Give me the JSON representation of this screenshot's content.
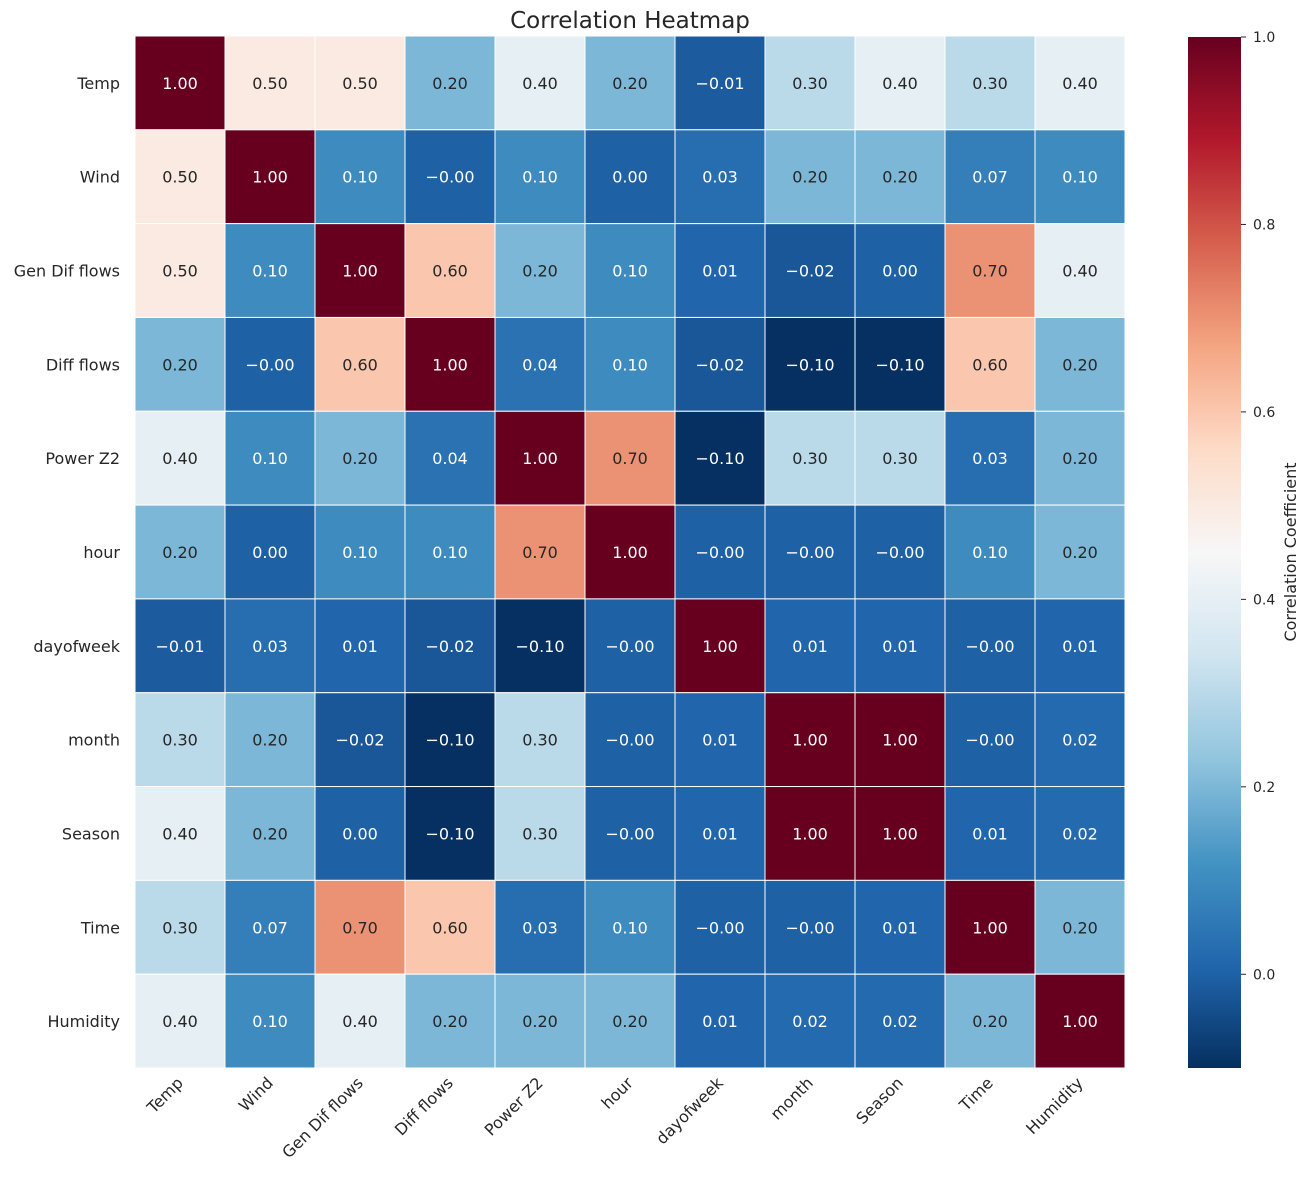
{
  "chart_data": {
    "type": "heatmap",
    "title": "Correlation Heatmap",
    "xlabel": "",
    "ylabel": "",
    "row_labels": [
      "Temp",
      "Wind",
      "Gen Dif flows",
      "Diff flows",
      "Power Z2",
      "hour",
      "dayofweek",
      "month",
      "Season",
      "Time",
      "Humidity"
    ],
    "col_labels": [
      "Temp",
      "Wind",
      "Gen Dif flows",
      "Diff flows",
      "Power Z2",
      "hour",
      "dayofweek",
      "month",
      "Season",
      "Time",
      "Humidity"
    ],
    "values": [
      [
        1.0,
        0.5,
        0.5,
        0.2,
        0.4,
        0.2,
        -0.01,
        0.3,
        0.4,
        0.3,
        0.4
      ],
      [
        0.5,
        1.0,
        0.1,
        -0.0,
        0.1,
        0.0,
        0.03,
        0.2,
        0.2,
        0.07,
        0.1
      ],
      [
        0.5,
        0.1,
        1.0,
        0.6,
        0.2,
        0.1,
        0.01,
        -0.02,
        0.0,
        0.7,
        0.4
      ],
      [
        0.2,
        -0.0,
        0.6,
        1.0,
        0.04,
        0.1,
        -0.02,
        -0.1,
        -0.1,
        0.6,
        0.2
      ],
      [
        0.4,
        0.1,
        0.2,
        0.04,
        1.0,
        0.7,
        -0.1,
        0.3,
        0.3,
        0.03,
        0.2
      ],
      [
        0.2,
        0.0,
        0.1,
        0.1,
        0.7,
        1.0,
        -0.0,
        -0.0,
        -0.0,
        0.1,
        0.2
      ],
      [
        -0.01,
        0.03,
        0.01,
        -0.02,
        -0.1,
        -0.0,
        1.0,
        0.01,
        0.01,
        -0.0,
        0.01
      ],
      [
        0.3,
        0.2,
        -0.02,
        -0.1,
        0.3,
        -0.0,
        0.01,
        1.0,
        1.0,
        -0.0,
        0.02
      ],
      [
        0.4,
        0.2,
        0.0,
        -0.1,
        0.3,
        -0.0,
        0.01,
        1.0,
        1.0,
        0.01,
        0.02
      ],
      [
        0.3,
        0.07,
        0.7,
        0.6,
        0.03,
        0.1,
        -0.0,
        -0.0,
        0.01,
        1.0,
        0.2
      ],
      [
        0.4,
        0.1,
        0.4,
        0.2,
        0.2,
        0.2,
        0.01,
        0.02,
        0.02,
        0.2,
        1.0
      ]
    ],
    "annotations": [
      [
        "1.00",
        "0.50",
        "0.50",
        "0.20",
        "0.40",
        "0.20",
        "−0.01",
        "0.30",
        "0.40",
        "0.30",
        "0.40"
      ],
      [
        "0.50",
        "1.00",
        "0.10",
        "−0.00",
        "0.10",
        "0.00",
        "0.03",
        "0.20",
        "0.20",
        "0.07",
        "0.10"
      ],
      [
        "0.50",
        "0.10",
        "1.00",
        "0.60",
        "0.20",
        "0.10",
        "0.01",
        "−0.02",
        "0.00",
        "0.70",
        "0.40"
      ],
      [
        "0.20",
        "−0.00",
        "0.60",
        "1.00",
        "0.04",
        "0.10",
        "−0.02",
        "−0.10",
        "−0.10",
        "0.60",
        "0.20"
      ],
      [
        "0.40",
        "0.10",
        "0.20",
        "0.04",
        "1.00",
        "0.70",
        "−0.10",
        "0.30",
        "0.30",
        "0.03",
        "0.20"
      ],
      [
        "0.20",
        "0.00",
        "0.10",
        "0.10",
        "0.70",
        "1.00",
        "−0.00",
        "−0.00",
        "−0.00",
        "0.10",
        "0.20"
      ],
      [
        "−0.01",
        "0.03",
        "0.01",
        "−0.02",
        "−0.10",
        "−0.00",
        "1.00",
        "0.01",
        "0.01",
        "−0.00",
        "0.01"
      ],
      [
        "0.30",
        "0.20",
        "−0.02",
        "−0.10",
        "0.30",
        "−0.00",
        "0.01",
        "1.00",
        "1.00",
        "−0.00",
        "0.02"
      ],
      [
        "0.40",
        "0.20",
        "0.00",
        "−0.10",
        "0.30",
        "−0.00",
        "0.01",
        "1.00",
        "1.00",
        "0.01",
        "0.02"
      ],
      [
        "0.30",
        "0.07",
        "0.70",
        "0.60",
        "0.03",
        "0.10",
        "−0.00",
        "−0.00",
        "0.01",
        "1.00",
        "0.20"
      ],
      [
        "0.40",
        "0.10",
        "0.40",
        "0.20",
        "0.20",
        "0.20",
        "0.01",
        "0.02",
        "0.02",
        "0.20",
        "1.00"
      ]
    ],
    "colormap": "RdBu_r",
    "vmin": -0.1,
    "vmax": 1.0,
    "colorbar": {
      "label": "Correlation Coefficient",
      "ticks": [
        0.0,
        0.2,
        0.4,
        0.6,
        0.8,
        1.0
      ],
      "tick_labels": [
        "0.0",
        "0.2",
        "0.4",
        "0.6",
        "0.8",
        "1.0"
      ],
      "placement": "right"
    },
    "grid": false,
    "xtick_rotation_deg": 45
  }
}
